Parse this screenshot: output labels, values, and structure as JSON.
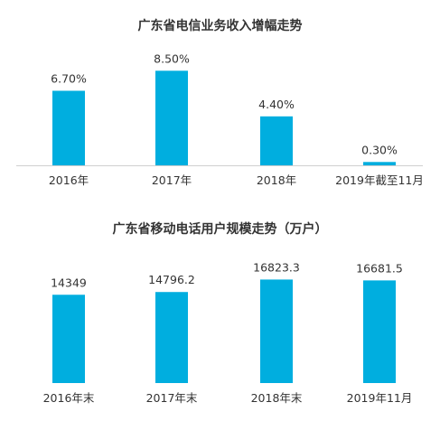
{
  "chart_data": [
    {
      "type": "bar",
      "title": "广东省电信业务收入增幅走势",
      "categories": [
        "2016年",
        "2017年",
        "2018年",
        "2019年截至11月"
      ],
      "values": [
        6.7,
        8.5,
        4.4,
        0.3
      ],
      "value_labels": [
        "6.70%",
        "8.50%",
        "4.40%",
        "0.30%"
      ],
      "unit": "%",
      "ylim": [
        0,
        9.5
      ],
      "grid": false,
      "color": "#00AEDF"
    },
    {
      "type": "bar",
      "title": "广东省移动电话用户规模走势（万户）",
      "categories": [
        "2016年末",
        "2017年末",
        "2018年末",
        "2019年11月"
      ],
      "values": [
        14349,
        14796.2,
        16823.3,
        16681.5
      ],
      "value_labels": [
        "14349",
        "14796.2",
        "16823.3",
        "16681.5"
      ],
      "ylim": [
        0,
        18500
      ],
      "grid": false,
      "color": "#00AEDF"
    }
  ]
}
